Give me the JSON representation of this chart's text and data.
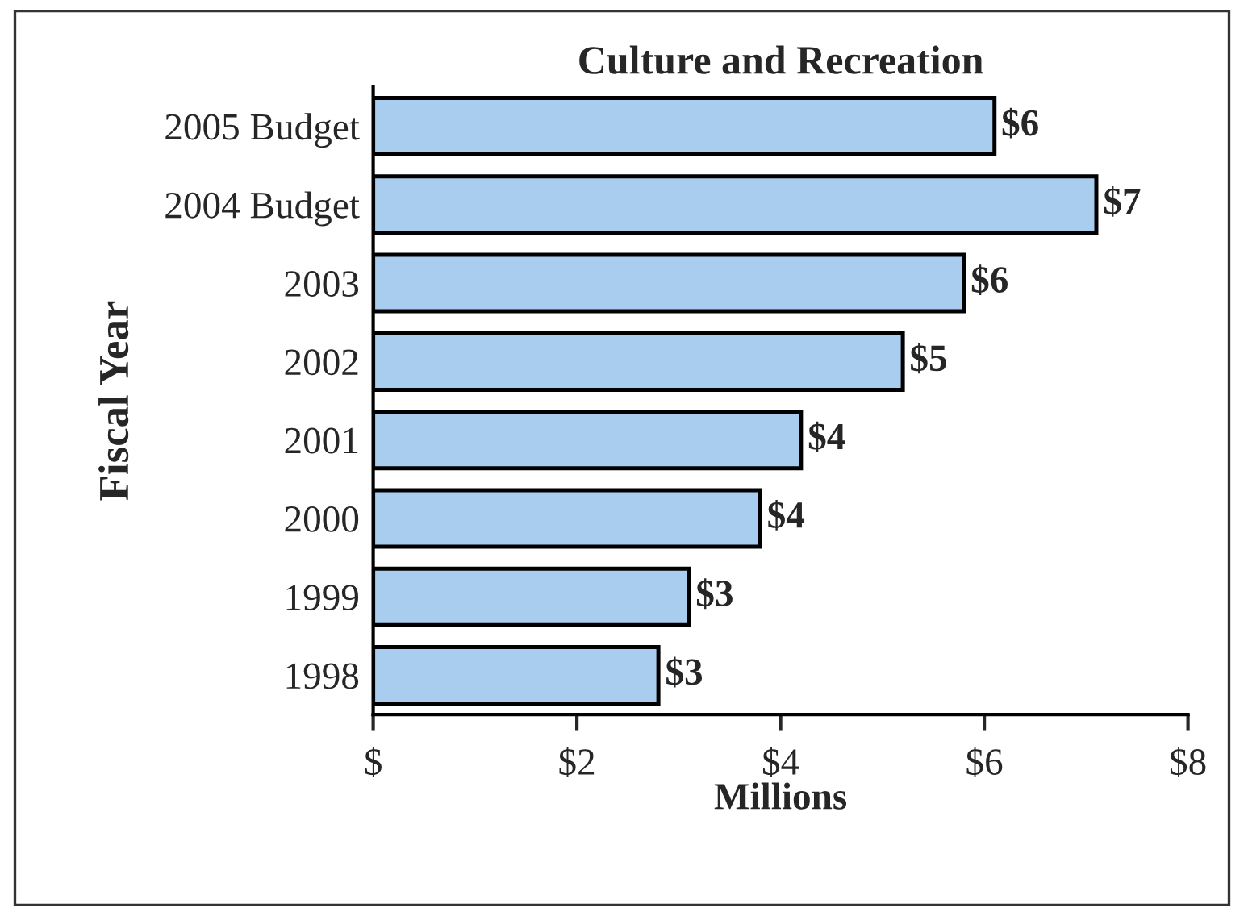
{
  "chart_data": {
    "type": "bar",
    "orientation": "horizontal",
    "title": "Culture and Recreation",
    "xlabel": "Millions",
    "ylabel": "Fiscal Year",
    "categories": [
      "2005 Budget",
      "2004 Budget",
      "2003",
      "2002",
      "2001",
      "2000",
      "1999",
      "1998"
    ],
    "values": [
      6.1,
      7.1,
      5.8,
      5.2,
      4.2,
      3.8,
      3.1,
      2.8
    ],
    "value_labels": [
      "$6",
      "$7",
      "$6",
      "$5",
      "$4",
      "$4",
      "$3",
      "$3"
    ],
    "color": "#a8cdee",
    "xlim": [
      0,
      8
    ],
    "xticks": [
      {
        "value": 0,
        "label": "$"
      },
      {
        "value": 2,
        "label": "$2"
      },
      {
        "value": 4,
        "label": "$4"
      },
      {
        "value": 6,
        "label": "$6"
      },
      {
        "value": 8,
        "label": "$8"
      }
    ],
    "grid": false,
    "legend": false
  }
}
